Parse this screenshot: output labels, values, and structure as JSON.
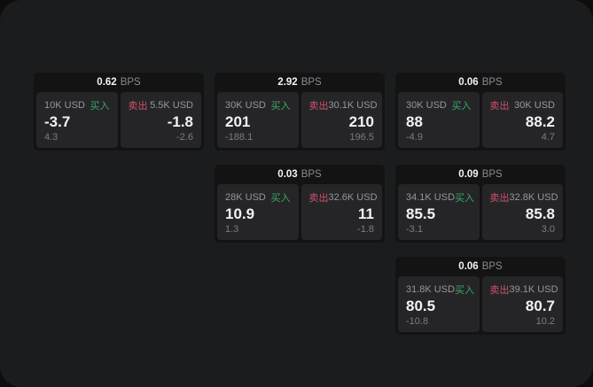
{
  "colors": {
    "buy": "#3aa966",
    "sell": "#cf5268"
  },
  "cards": [
    {
      "row": 1,
      "col": 1,
      "bps": "0.62",
      "unit": "BPS",
      "buy": {
        "amount": "10K USD",
        "label": "买入",
        "value": "-3.7",
        "sub": "4.3"
      },
      "sell": {
        "label": "卖出",
        "amount": "5.5K USD",
        "value": "-1.8",
        "sub": "-2.6"
      }
    },
    {
      "row": 1,
      "col": 2,
      "bps": "2.92",
      "unit": "BPS",
      "buy": {
        "amount": "30K USD",
        "label": "买入",
        "value": "201",
        "sub": "-188.1"
      },
      "sell": {
        "label": "卖出",
        "amount": "30.1K USD",
        "value": "210",
        "sub": "196.5"
      }
    },
    {
      "row": 1,
      "col": 3,
      "bps": "0.06",
      "unit": "BPS",
      "buy": {
        "amount": "30K USD",
        "label": "买入",
        "value": "88",
        "sub": "-4.9"
      },
      "sell": {
        "label": "卖出",
        "amount": "30K USD",
        "value": "88.2",
        "sub": "4.7"
      }
    },
    {
      "row": 2,
      "col": 2,
      "bps": "0.03",
      "unit": "BPS",
      "buy": {
        "amount": "28K USD",
        "label": "买入",
        "value": "10.9",
        "sub": "1.3"
      },
      "sell": {
        "label": "卖出",
        "amount": "32.6K USD",
        "value": "11",
        "sub": "-1.8"
      }
    },
    {
      "row": 2,
      "col": 3,
      "bps": "0.09",
      "unit": "BPS",
      "buy": {
        "amount": "34.1K USD",
        "label": "买入",
        "value": "85.5",
        "sub": "-3.1"
      },
      "sell": {
        "label": "卖出",
        "amount": "32.8K USD",
        "value": "85.8",
        "sub": "3.0"
      }
    },
    {
      "row": 3,
      "col": 3,
      "bps": "0.06",
      "unit": "BPS",
      "buy": {
        "amount": "31.8K USD",
        "label": "买入",
        "value": "80.5",
        "sub": "-10.8"
      },
      "sell": {
        "label": "卖出",
        "amount": "39.1K USD",
        "value": "80.7",
        "sub": "10.2"
      }
    }
  ]
}
